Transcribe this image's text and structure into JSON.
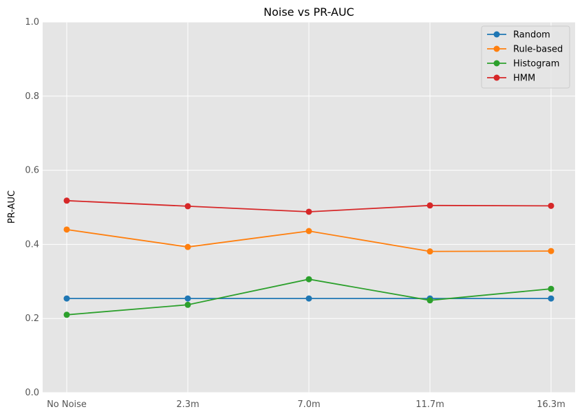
{
  "chart_data": {
    "type": "line",
    "title": "Noise vs PR-AUC",
    "xlabel": "",
    "ylabel": "PR-AUC",
    "categories": [
      "No Noise",
      "2.3m",
      "7.0m",
      "11.7m",
      "16.3m"
    ],
    "ylim": [
      0,
      1.0
    ],
    "yticks": [
      "0.0",
      "0.2",
      "0.4",
      "0.6",
      "0.8",
      "1.0"
    ],
    "grid": true,
    "legend_position": "top-right",
    "series": [
      {
        "name": "Random",
        "color": "#1f77b4",
        "values": [
          0.254,
          0.254,
          0.254,
          0.254,
          0.254
        ]
      },
      {
        "name": "Rule-based",
        "color": "#ff7f0e",
        "values": [
          0.44,
          0.393,
          0.436,
          0.381,
          0.382
        ]
      },
      {
        "name": "Histogram",
        "color": "#2ca02c",
        "values": [
          0.21,
          0.237,
          0.306,
          0.249,
          0.28
        ]
      },
      {
        "name": "HMM",
        "color": "#d62728",
        "values": [
          0.518,
          0.503,
          0.488,
          0.505,
          0.504
        ]
      }
    ]
  }
}
